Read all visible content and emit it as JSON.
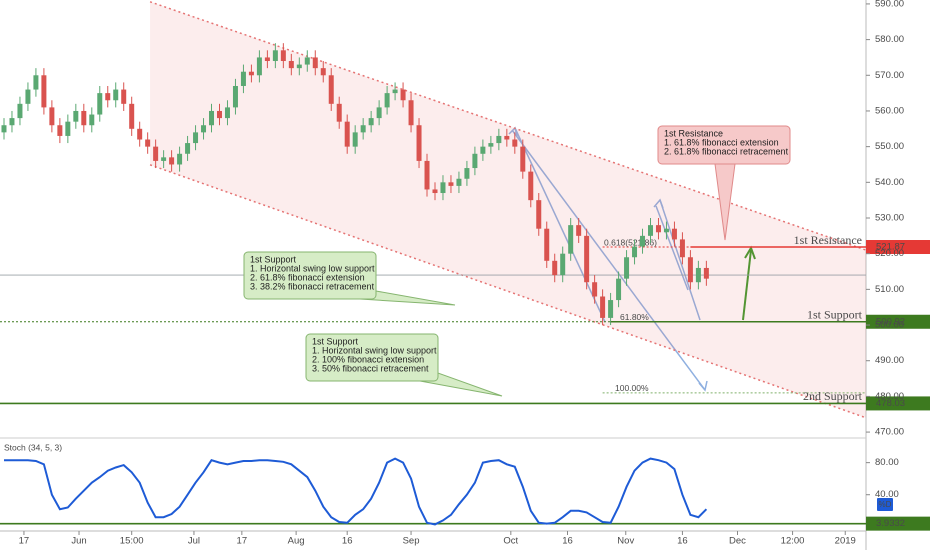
{
  "chart_data": {
    "type": "candlestick",
    "xlim": [
      -0.5,
      108
    ],
    "xticks": [
      {
        "value": 2.5,
        "label": "17"
      },
      {
        "value": 9.4,
        "label": "Jun"
      },
      {
        "value": 16,
        "label": "15:00"
      },
      {
        "value": 23.8,
        "label": "Jul"
      },
      {
        "value": 29.8,
        "label": "17"
      },
      {
        "value": 36.6,
        "label": "Aug"
      },
      {
        "value": 43,
        "label": "16"
      },
      {
        "value": 51,
        "label": "Sep"
      },
      {
        "value": 63.5,
        "label": "Oct"
      },
      {
        "value": 70.6,
        "label": "16"
      },
      {
        "value": 77.9,
        "label": "Nov"
      },
      {
        "value": 85,
        "label": "16"
      },
      {
        "value": 91.9,
        "label": "Dec"
      },
      {
        "value": 98.8,
        "label": "12:00"
      },
      {
        "value": 105.4,
        "label": "2019"
      }
    ],
    "ylim": [
      468.9,
      591.1
    ],
    "yticks": [
      {
        "value": 590,
        "label": "590.00"
      },
      {
        "value": 580,
        "label": "580.00"
      },
      {
        "value": 570,
        "label": "570.00"
      },
      {
        "value": 560,
        "label": "560.00"
      },
      {
        "value": 550,
        "label": "550.00"
      },
      {
        "value": 540,
        "label": "540.00"
      },
      {
        "value": 530,
        "label": "530.00"
      },
      {
        "value": 520,
        "label": "520.00"
      },
      {
        "value": 510,
        "label": "510.00"
      },
      {
        "value": 500,
        "label": "500.00"
      },
      {
        "value": 490,
        "label": "490.00"
      },
      {
        "value": 480,
        "label": "480.00"
      },
      {
        "value": 470,
        "label": "470.00"
      }
    ],
    "up_color": "#5aa872",
    "down_color": "#d9534f",
    "open": [
      554,
      556,
      558,
      562,
      566,
      570,
      561,
      556,
      553,
      557,
      560,
      556,
      559,
      565,
      563,
      566,
      562,
      555,
      552,
      550,
      546,
      547,
      545,
      548,
      551,
      554,
      556,
      560,
      558,
      561,
      567,
      571,
      570,
      575,
      574,
      577,
      574,
      572,
      573,
      575,
      572,
      570,
      562,
      557,
      550,
      554,
      556,
      558,
      561,
      565,
      566,
      563,
      556,
      546,
      538,
      537,
      540,
      539,
      541,
      544,
      548,
      550,
      551,
      553,
      552,
      550,
      543,
      535,
      527,
      518,
      514,
      520,
      528,
      525,
      512,
      508,
      502,
      507,
      513,
      519,
      522,
      525,
      528,
      526,
      527,
      524,
      519,
      512,
      516
    ],
    "high": [
      558,
      560,
      564,
      568,
      572,
      572,
      563,
      558,
      559,
      562,
      562,
      561,
      567,
      567,
      568,
      568,
      564,
      557,
      554,
      552,
      549,
      549,
      550,
      553,
      556,
      558,
      562,
      562,
      563,
      569,
      573,
      573,
      577,
      577,
      579,
      579,
      576,
      575,
      577,
      577,
      574,
      572,
      564,
      559,
      556,
      558,
      560,
      563,
      567,
      568,
      568,
      565,
      558,
      548,
      540,
      542,
      542,
      543,
      546,
      550,
      552,
      553,
      555,
      555,
      554,
      552,
      545,
      537,
      529,
      520,
      522,
      530,
      530,
      527,
      514,
      510,
      509,
      515,
      521,
      524,
      527,
      530,
      530,
      529,
      529,
      526,
      521,
      518,
      518
    ],
    "low": [
      552,
      554,
      556,
      560,
      564,
      559,
      554,
      551,
      551,
      555,
      554,
      554,
      557,
      561,
      561,
      560,
      553,
      550,
      548,
      544,
      544,
      543,
      543,
      546,
      549,
      552,
      554,
      556,
      556,
      559,
      565,
      568,
      568,
      572,
      572,
      572,
      570,
      570,
      571,
      570,
      568,
      560,
      555,
      548,
      548,
      552,
      554,
      556,
      559,
      563,
      561,
      554,
      544,
      536,
      535,
      535,
      537,
      537,
      539,
      542,
      546,
      548,
      549,
      550,
      548,
      541,
      533,
      525,
      516,
      512,
      512,
      518,
      523,
      510,
      506,
      500,
      500,
      505,
      511,
      517,
      520,
      523,
      524,
      524,
      522,
      517,
      510,
      510,
      511
    ],
    "close": [
      556,
      558,
      562,
      566,
      570,
      561,
      556,
      553,
      557,
      560,
      556,
      559,
      565,
      563,
      566,
      562,
      555,
      552,
      550,
      546,
      547,
      545,
      548,
      551,
      554,
      556,
      560,
      558,
      561,
      567,
      571,
      570,
      575,
      574,
      577,
      574,
      572,
      573,
      575,
      572,
      570,
      562,
      557,
      550,
      554,
      556,
      558,
      561,
      565,
      566,
      563,
      556,
      546,
      538,
      537,
      540,
      539,
      541,
      544,
      548,
      550,
      551,
      553,
      552,
      550,
      543,
      535,
      527,
      518,
      514,
      520,
      528,
      525,
      512,
      508,
      502,
      507,
      513,
      519,
      522,
      525,
      528,
      526,
      527,
      524,
      519,
      512,
      516,
      513
    ],
    "last_price": 514,
    "channel": {
      "color": "#e57373",
      "upper": [
        [
          18.3,
          590.6
        ],
        [
          108,
          521
        ]
      ],
      "lower": [
        [
          18.3,
          544.9
        ],
        [
          108,
          474
        ]
      ]
    },
    "levels": [
      {
        "name": "1st Resistance",
        "value": 521.87,
        "color": "#e53935",
        "x_start": 86
      },
      {
        "name": "1st Support",
        "value": 500.92,
        "color": "#3d7a1f",
        "x_start": 76
      },
      {
        "name": "2nd Support",
        "value": 478.03,
        "color": "#3d7a1f",
        "x_start": -0.5
      }
    ],
    "fib": [
      {
        "label": "0.618(521.86)",
        "value": 521.87,
        "color": "#e53935"
      },
      {
        "label": "61.80%",
        "value": 500.92,
        "color": "#3d7a1f"
      },
      {
        "label": "100.00%",
        "value": 481,
        "color": "#7fb06a"
      }
    ],
    "callouts": [
      {
        "title": "1st Resistance",
        "lines": [
          "1. 61.8% fibonacci extension",
          "2. 61.8% fibonacci retracement"
        ]
      },
      {
        "title": "1st Support",
        "lines": [
          "1. Horizontal swing low support",
          "2. 61.8% fibonacci extension",
          "3. 38.2% fibonacci retracement"
        ]
      },
      {
        "title": "1st Support",
        "lines": [
          "1. Horizontal swing low support",
          "2. 100% fibonacci extension",
          "3. 50% fibonacci retracement"
        ]
      }
    ],
    "indicator": {
      "name": "Stoch (34, 5, 3)",
      "color": "#1e5bd6",
      "ylim": [
        -4,
        107
      ],
      "yticks": [
        {
          "value": 80,
          "label": "80.00"
        },
        {
          "value": 40,
          "label": "40.00"
        }
      ],
      "values": [
        83,
        83,
        83,
        83,
        82,
        78,
        40,
        22,
        24,
        35,
        45,
        55,
        62,
        70,
        74,
        77,
        68,
        55,
        30,
        12,
        12,
        16,
        25,
        40,
        55,
        68,
        83,
        80,
        78,
        80,
        82,
        82,
        83,
        83,
        82,
        81,
        78,
        70,
        62,
        45,
        25,
        12,
        6,
        5,
        15,
        22,
        35,
        55,
        80,
        85,
        80,
        60,
        25,
        5,
        3,
        8,
        15,
        28,
        40,
        55,
        80,
        82,
        83,
        78,
        75,
        50,
        20,
        5,
        4,
        5,
        12,
        20,
        20,
        18,
        12,
        6,
        5,
        25,
        50,
        70,
        80,
        85,
        83,
        80,
        72,
        40,
        15,
        12,
        22
      ],
      "series_label": "%D",
      "level": 3.9332,
      "level_color": "#3d7a1f"
    }
  }
}
